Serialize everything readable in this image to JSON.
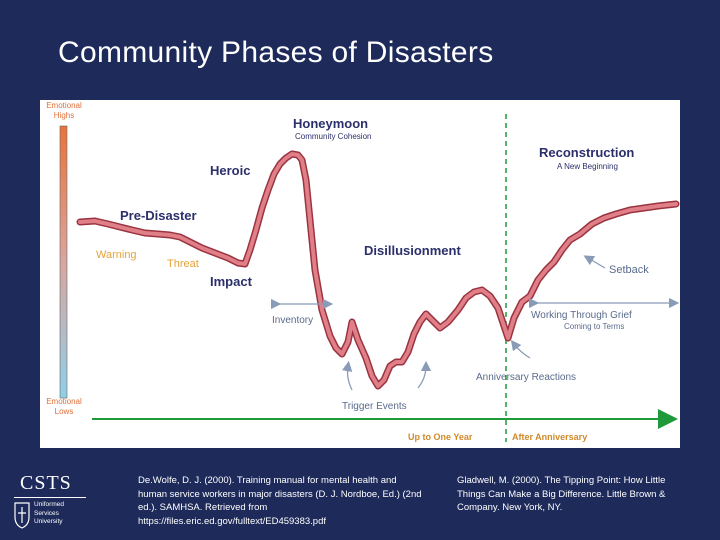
{
  "slide": {
    "title": "Community Phases of Disasters"
  },
  "diagram": {
    "labels": {
      "emotional_highs_1": "Emotional",
      "emotional_highs_2": "Highs",
      "emotional_lows_1": "Emotional",
      "emotional_lows_2": "Lows",
      "honeymoon": "Honeymoon",
      "community_cohesion": "Community Cohesion",
      "heroic": "Heroic",
      "pre_disaster": "Pre-Disaster",
      "warning": "Warning",
      "threat": "Threat",
      "impact": "Impact",
      "disillusionment": "Disillusionment",
      "reconstruction": "Reconstruction",
      "new_beginning": "A New Beginning",
      "setback": "Setback",
      "inventory": "Inventory",
      "working_through_grief": "Working Through Grief",
      "coming_to_terms": "Coming to Terms",
      "anniversary_reactions": "Anniversary Reactions",
      "trigger_events": "Trigger Events",
      "up_to_one_year": "Up to One Year",
      "after_anniversary": "After Anniversary"
    },
    "colors": {
      "curve": "#d9707a",
      "curve_outline": "#9a3440",
      "label_dark": "#2b2f6b",
      "label_orange": "#e8a23a",
      "label_gray": "#5a6b8c",
      "arrow_gray": "#8a9bb8",
      "timeline_green": "#1f9a3a",
      "timeline_text": "#d08a2a"
    }
  },
  "references": {
    "ref1": "De.Wolfe, D. J. (2000). Training manual for mental health and human service workers in major disasters (D. J. Nordboe, Ed.) (2nd ed.). SAMHSA. Retrieved from https://files.eric.ed.gov/fulltext/ED459383.pdf",
    "ref2": "Gladwell, M. (2000). The Tipping Point: How Little Things Can Make a Big Difference. Little Brown & Company. New York, NY."
  },
  "logo": {
    "name": "CSTS",
    "line1": "Uniformed",
    "line2": "Services",
    "line3": "University"
  }
}
